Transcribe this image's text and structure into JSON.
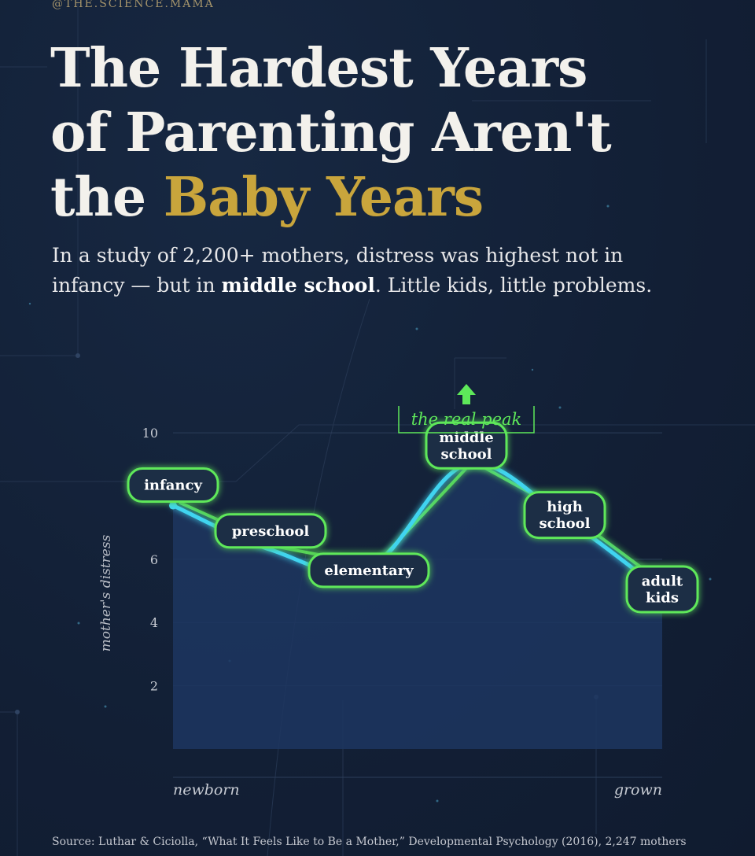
{
  "handle": "@THE.SCIENCE.MAMA",
  "title": {
    "line1": "The Hardest Years",
    "line2": "of Parenting Aren't",
    "line3_prefix": "the ",
    "line3_highlight": "Baby Years"
  },
  "subtitle": {
    "line1": "In a study of 2,200+ mothers, distress was highest not in",
    "line2_before": "infancy — but in ",
    "line2_bold": "middle school",
    "line2_after": ". Little kids, little problems."
  },
  "colors": {
    "accent_gold": "#c9a53c",
    "curve_cyan": "#3fd4f0",
    "curve_green": "#5ee85a",
    "area_fill": "#1d3660"
  },
  "chart_data": {
    "type": "line",
    "ylabel": "mother's distress",
    "xlabel_start": "newborn",
    "xlabel_end": "grown",
    "ylim": [
      0,
      10.5
    ],
    "yticks": [
      2,
      4,
      6,
      10
    ],
    "grid": true,
    "annotation": "the real peak",
    "series": [
      {
        "categories": [
          "infancy",
          "preschool",
          "elementary",
          "middle school",
          "high school",
          "adult kids"
        ],
        "values": [
          7.7,
          6.3,
          5.7,
          9.0,
          7.3,
          5.0
        ]
      }
    ]
  },
  "source": "Source: Luthar & Ciciolla, “What It Feels Like to Be a Mother,” Developmental Psychology (2016), 2,247 mothers"
}
